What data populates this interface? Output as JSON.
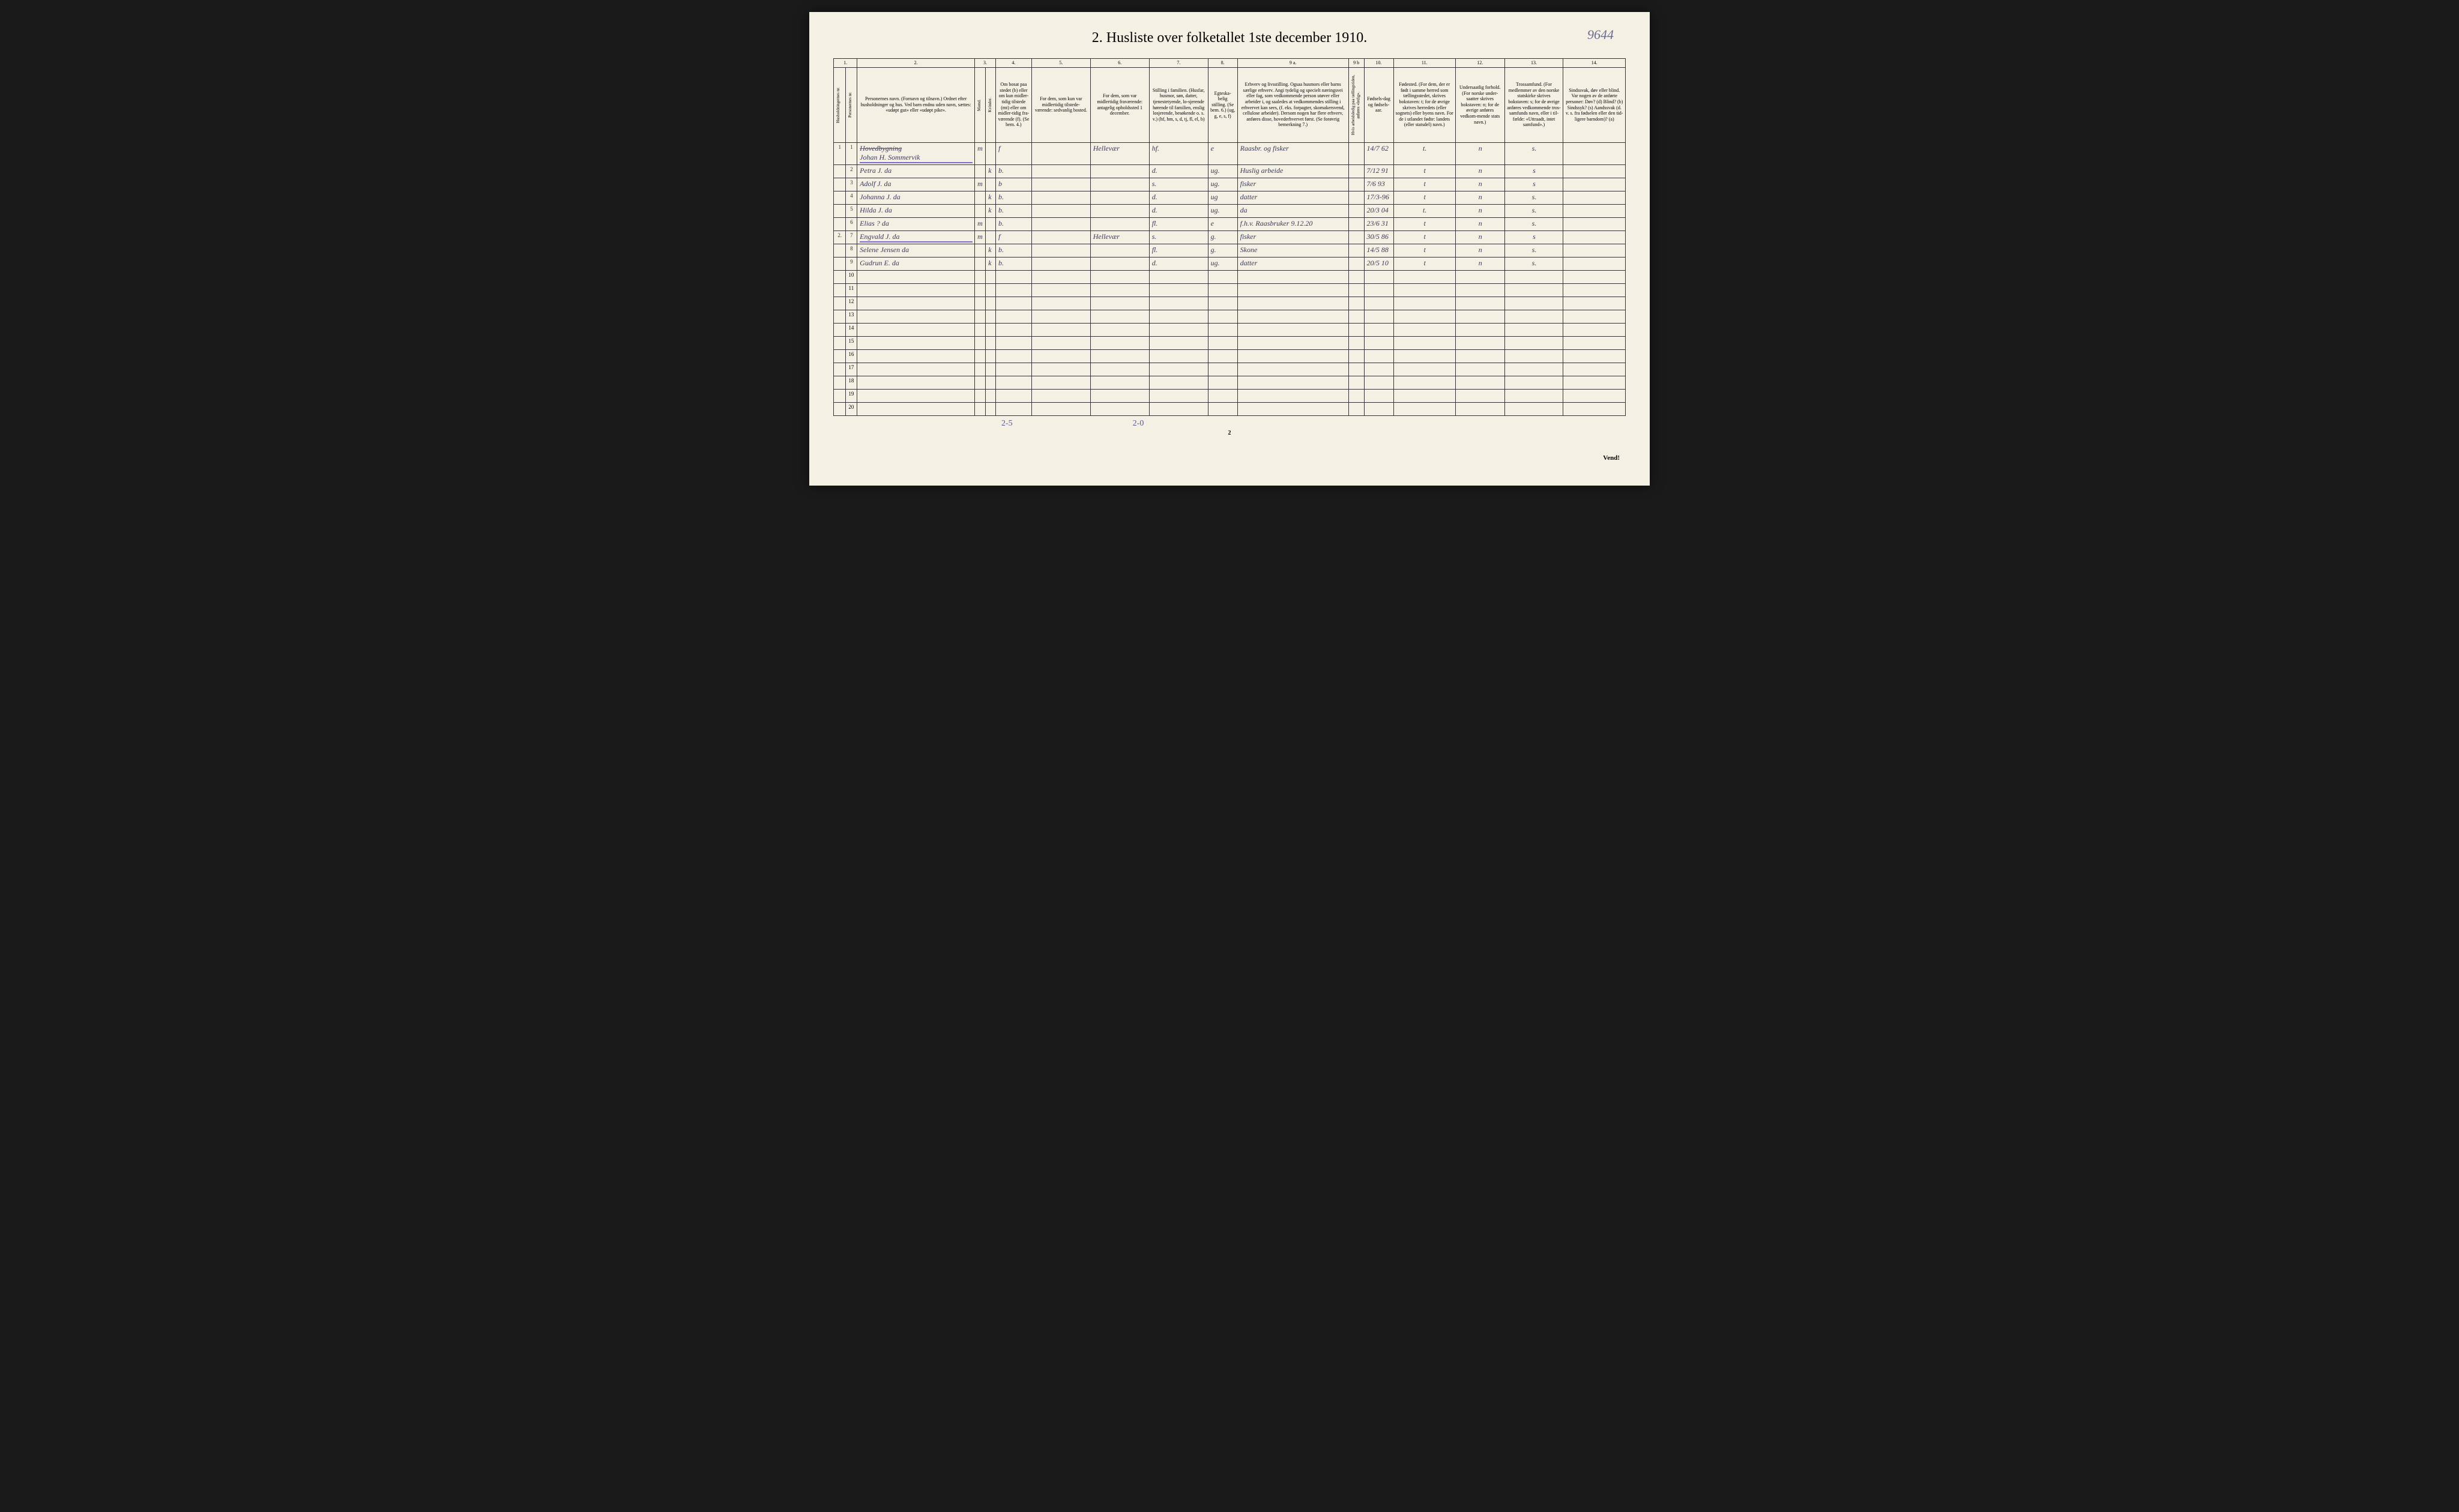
{
  "handwritten_id": "9644",
  "title": "2.  Husliste over folketallet 1ste december 1910.",
  "column_numbers": [
    "1.",
    "",
    "2.",
    "3.",
    "4.",
    "5.",
    "6.",
    "7.",
    "8.",
    "9 a.",
    "9 b",
    "10.",
    "11.",
    "12.",
    "13.",
    "14."
  ],
  "headers": {
    "col1": "Husholdningernes nr.",
    "col1b": "Personernes nr.",
    "col2": "Personernes navn.\n(Fornavn og tilnavn.)\nOrdnet efter husholdninger og hus.\nVed barn endnu uden navn, sættes: «udøpt gut» eller «udøpt pike».",
    "col3": "Kjøn.",
    "col3a": "Mænd.",
    "col3b": "Kvinder.",
    "col3_bottom": "m. | k.",
    "col4": "Om bosat paa stedet (b) eller om kun midler-tidig tilstede (mt) eller om midler-tidig fra-værende (f).\n(Se bem. 4.)",
    "col5": "For dem, som kun var midlertidig tilstede-værende:\nsedvanlig bosted.",
    "col6": "For dem, som var midlertidig fraværende:\nantagelig opholdssted 1 december.",
    "col7": "Stilling i familien.\n(Husfar, husmor, søn, datter, tjenestetyende, lo-sjerende hørende til familien, enslig losjerende, besøkende o. s. v.)\n(hf, hm, s, d, tj, fl, el, b)",
    "col8": "Egteska-belig stilling.\n(Se bem. 6.)\n(ug, g, e, s, f)",
    "col9a": "Erhverv og livsstilling.\nOgsaa husmors eller barns særlige erhverv.\nAngi tydelig og specielt næringsvei eller fag, som vedkommende person utøver eller arbeider i, og saaledes at vedkommendes stilling i erhvervet kan sees, (f. eks. forpagter, skomakersvend, cellulose arbeider). Dersom nogen har flere erhverv, anføres disse, hovederhvervet først.\n(Se forøvrig bemerkning 7.)",
    "col9b": "Hvis arbeidsledig paa tællingstiden, anføres «ledig».",
    "col10": "Fødsels-dag og fødsels-aar.",
    "col11": "Fødested.\n(For dem, der er født i samme herred som tællingsstedet, skrives bokstaven: t; for de øvrige skrives herredets (eller sognets) eller byens navn. For de i utlandet fødte: landets (eller statsdel) navn.)",
    "col12": "Undersaatlig forhold.\n(For norske under-saatter skrives bokstaven: n; for de øvrige anføres vedkom-mende stats navn.)",
    "col13": "Trossamfund.\n(For medlemmer av den norske statskirke skrives bokstaven: s; for de øvrige anføres vedkommende tros-samfunds navn, eller i til-fælde: «Uttraadt, intet samfund».)",
    "col14": "Sindssvak, døv eller blind.\nVar nogen av de anførte personer:\nDøv?      (d)\nBlind?    (b)\nSindssyk? (s)\nAandssvak (d. v. s. fra fødselen eller den tid-ligere barndom)? (a)"
  },
  "rows": [
    {
      "hnum": "1",
      "pnum": "1",
      "name": "Johan H. Sommervik",
      "strikeabove": "Hovedbygning",
      "m": "m",
      "k": "",
      "bosat": "f",
      "c5": "",
      "c6": "Hellevær",
      "c7": "hf.",
      "c8": "e",
      "c9a": "Raasbr. og fisker",
      "c9b": "",
      "c10": "14/7 62",
      "c11": "t.",
      "c12": "n",
      "c13": "s.",
      "c14": ""
    },
    {
      "hnum": "",
      "pnum": "2",
      "name": "Petra J.   da",
      "m": "",
      "k": "k",
      "bosat": "b.",
      "c5": "",
      "c6": "",
      "c7": "d.",
      "c8": "ug.",
      "c9a": "Huslig arbeide",
      "c9b": "",
      "c10": "7/12 91",
      "c11": "t",
      "c12": "n",
      "c13": "s",
      "c14": ""
    },
    {
      "hnum": "",
      "pnum": "3",
      "name": "Adolf J.   da",
      "m": "m",
      "k": "",
      "bosat": "b",
      "c5": "",
      "c6": "",
      "c7": "s.",
      "c8": "ug.",
      "c9a": "fisker",
      "c9b": "",
      "c10": "7/6 93",
      "c11": "t",
      "c12": "n",
      "c13": "s",
      "c14": ""
    },
    {
      "hnum": "",
      "pnum": "4",
      "name": "Johanna J.  da",
      "m": "",
      "k": "k",
      "bosat": "b.",
      "c5": "",
      "c6": "",
      "c7": "d.",
      "c8": "ug",
      "c9a": "datter",
      "c9b": "",
      "c10": "17/3-96",
      "c11": "t",
      "c12": "n",
      "c13": "s.",
      "c14": ""
    },
    {
      "hnum": "",
      "pnum": "5",
      "name": "Hilda J.   da",
      "m": "",
      "k": "k",
      "bosat": "b.",
      "c5": "",
      "c6": "",
      "c7": "d.",
      "c8": "ug.",
      "c9a": "da",
      "c9b": "",
      "c10": "20/3 04",
      "c11": "t.",
      "c12": "n",
      "c13": "s.",
      "c14": ""
    },
    {
      "hnum": "",
      "pnum": "6",
      "name": "Elias ?    da",
      "m": "m",
      "k": "",
      "bosat": "b.",
      "c5": "",
      "c6": "",
      "c7": "fl.",
      "c8": "e",
      "c9a": "f.h.v. Raasbruker  9.12.20",
      "c9b": "",
      "c10": "23/6 31",
      "c11": "t",
      "c12": "n",
      "c13": "s.",
      "c14": ""
    },
    {
      "hnum": "2.",
      "pnum": "7",
      "name": "Engvald J.   da",
      "m": "m",
      "k": "",
      "bosat": "f",
      "c5": "",
      "c6": "Hellevær",
      "c7": "s.",
      "c8": "g.",
      "c9a": "fisker",
      "c9b": "",
      "c10": "30/5 86",
      "c11": "t",
      "c12": "n",
      "c13": "s",
      "c14": ""
    },
    {
      "hnum": "",
      "pnum": "8",
      "name": "Selene Jensen  da",
      "m": "",
      "k": "k",
      "bosat": "b.",
      "c5": "",
      "c6": "",
      "c7": "fl.",
      "c8": "g.",
      "c9a": "Skone",
      "c9b": "",
      "c10": "14/5 88",
      "c11": "t",
      "c12": "n",
      "c13": "s.",
      "c14": ""
    },
    {
      "hnum": "",
      "pnum": "9",
      "name": "Gudrun E.   da",
      "m": "",
      "k": "k",
      "bosat": "b.",
      "c5": "",
      "c6": "",
      "c7": "d.",
      "c8": "ug.",
      "c9a": "datter",
      "c9b": "",
      "c10": "20/5 10",
      "c11": "t",
      "c12": "n",
      "c13": "s.",
      "c14": ""
    }
  ],
  "empty_row_numbers": [
    "10",
    "11",
    "12",
    "13",
    "14",
    "15",
    "16",
    "17",
    "18",
    "19",
    "20"
  ],
  "bottom_note_1": "2-5",
  "bottom_note_2": "2-0",
  "page_number": "2",
  "vend": "Vend!",
  "colors": {
    "page_bg": "#f4f0e4",
    "border": "#333333",
    "handwriting": "#3a3a5a",
    "purple": "#7a6acc",
    "body_bg": "#1a1a1a"
  }
}
